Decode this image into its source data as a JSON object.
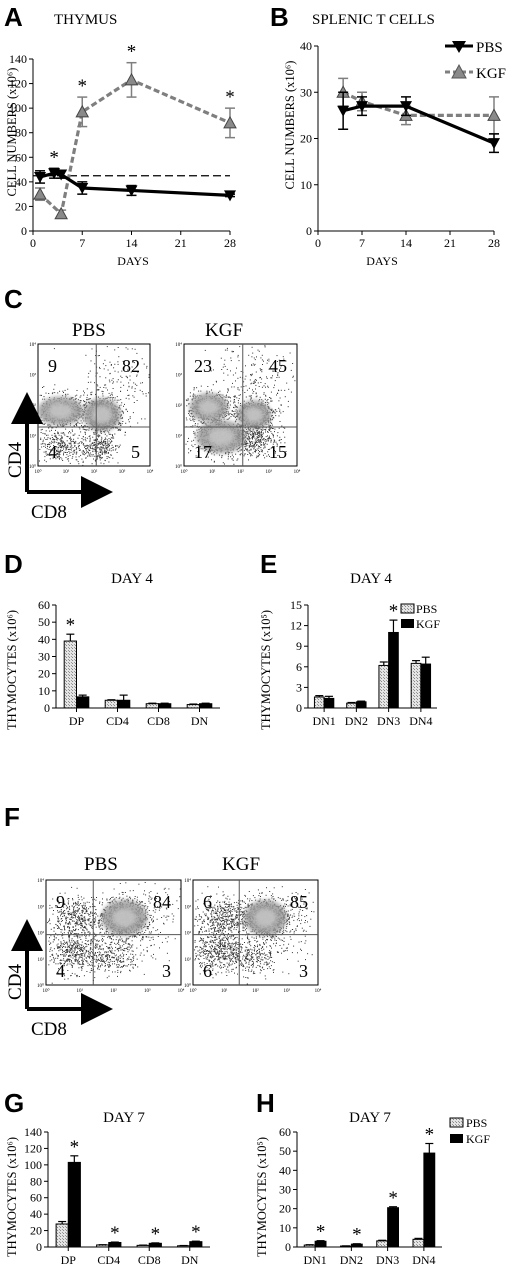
{
  "colors": {
    "pbs_line": "#000000",
    "kgf_line": "#7f7f7f",
    "kgf_marker": "#8a8a8a",
    "pbs_bar_hatch": "#c8c8c8",
    "kgf_bar": "#000000",
    "flow_background": "#ffffff"
  },
  "icons": {
    "pbs_marker": "down-triangle",
    "kgf_marker": "up-triangle",
    "significance": "asterisk"
  },
  "panels": {
    "A": {
      "letter": "A"
    },
    "B": {
      "letter": "B"
    },
    "C": {
      "letter": "C",
      "left_title": "PBS",
      "right_title": "KGF",
      "y_marker": "CD4",
      "x_marker": "CD8"
    },
    "D": {
      "letter": "D"
    },
    "E": {
      "letter": "E"
    },
    "F": {
      "letter": "F",
      "left_title": "PBS",
      "right_title": "KGF",
      "y_marker": "CD4",
      "x_marker": "CD8"
    },
    "G": {
      "letter": "G"
    },
    "H": {
      "letter": "H"
    }
  },
  "legend": {
    "pbs": "PBS",
    "kgf": "KGF"
  },
  "chart_data": [
    {
      "id": "A",
      "type": "line",
      "title": "THYMUS",
      "xlabel": "DAYS",
      "ylabel": "CELL NUMBERS (x10⁶)",
      "xlim": [
        0,
        28
      ],
      "ylim": [
        0,
        140
      ],
      "xticks": [
        0,
        7,
        14,
        21,
        28
      ],
      "yticks": [
        0,
        20,
        40,
        60,
        80,
        100,
        120,
        140
      ],
      "reference_line": {
        "style": "dashed",
        "y": 45
      },
      "series": [
        {
          "name": "PBS",
          "marker": "down-triangle",
          "line": "solid",
          "x": [
            1,
            3,
            4,
            7,
            14,
            28
          ],
          "y": [
            44,
            47,
            46,
            35,
            33,
            29
          ],
          "err": [
            5,
            4,
            3,
            5,
            4,
            1
          ]
        },
        {
          "name": "KGF",
          "marker": "up-triangle",
          "line": "dashed",
          "x": [
            1,
            4,
            7,
            14,
            28
          ],
          "y": [
            30,
            14,
            97,
            123,
            88
          ],
          "err": [
            5,
            3,
            12,
            14,
            12
          ]
        }
      ],
      "significance_x": [
        3,
        7,
        14,
        28
      ]
    },
    {
      "id": "B",
      "type": "line",
      "title": "SPLENIC T CELLS",
      "xlabel": "DAYS",
      "ylabel": "CELL NUMBERS (x10⁶)",
      "xlim": [
        0,
        28
      ],
      "ylim": [
        0,
        40
      ],
      "xticks": [
        0,
        7,
        14,
        21,
        28
      ],
      "yticks": [
        0,
        10,
        20,
        30,
        40
      ],
      "series": [
        {
          "name": "PBS",
          "marker": "down-triangle",
          "line": "solid",
          "x": [
            4,
            7,
            14,
            28
          ],
          "y": [
            26,
            27,
            27,
            19
          ],
          "err": [
            4,
            2,
            2,
            2
          ]
        },
        {
          "name": "KGF",
          "marker": "up-triangle",
          "line": "dashed",
          "x": [
            4,
            7,
            14,
            28
          ],
          "y": [
            30,
            28,
            25,
            25
          ],
          "err": [
            3,
            2,
            2,
            4
          ]
        }
      ]
    },
    {
      "id": "C",
      "type": "scatter",
      "subtype": "flow-cytometry-quadrants",
      "plots": [
        {
          "title": "PBS",
          "quadrants": {
            "upper_left": "9",
            "upper_right": "82",
            "lower_left": "4",
            "lower_right": "5"
          }
        },
        {
          "title": "KGF",
          "quadrants": {
            "upper_left": "23",
            "upper_right": "45",
            "lower_left": "17",
            "lower_right": "15"
          }
        }
      ],
      "axis_ticks": [
        "10⁰",
        "10¹",
        "10²",
        "10³",
        "10⁴"
      ]
    },
    {
      "id": "D",
      "type": "bar",
      "title": "DAY 4",
      "ylabel": "THYMOCYTES (x10⁶)",
      "ylim": [
        0,
        60
      ],
      "yticks": [
        0,
        10,
        20,
        30,
        40,
        50,
        60
      ],
      "categories": [
        "DP",
        "CD4",
        "CD8",
        "DN"
      ],
      "series": [
        {
          "name": "PBS",
          "values": [
            39,
            4.5,
            2.5,
            2
          ],
          "err": [
            4,
            0.3,
            0.3,
            0.3
          ]
        },
        {
          "name": "KGF",
          "values": [
            6.5,
            4.5,
            2.5,
            2.5
          ],
          "err": [
            1,
            3,
            0.3,
            0.3
          ]
        }
      ],
      "significance": [
        {
          "category": "DP",
          "series": "PBS"
        }
      ]
    },
    {
      "id": "E",
      "type": "bar",
      "title": "DAY 4",
      "ylabel": "THYMOCYTES (x10⁵)",
      "ylim": [
        0,
        15
      ],
      "yticks": [
        0,
        3,
        6,
        9,
        12,
        15
      ],
      "categories": [
        "DN1",
        "DN2",
        "DN3",
        "DN4"
      ],
      "series": [
        {
          "name": "PBS",
          "values": [
            1.6,
            0.7,
            6.2,
            6.5
          ],
          "err": [
            0.2,
            0.1,
            0.5,
            0.4
          ]
        },
        {
          "name": "KGF",
          "values": [
            1.4,
            0.9,
            11,
            6.4
          ],
          "err": [
            0.3,
            0.1,
            1.8,
            1
          ]
        }
      ],
      "significance": [
        {
          "category": "DN3",
          "series": "KGF"
        }
      ]
    },
    {
      "id": "F",
      "type": "scatter",
      "subtype": "flow-cytometry-quadrants",
      "plots": [
        {
          "title": "PBS",
          "quadrants": {
            "upper_left": "9",
            "upper_right": "84",
            "lower_left": "4",
            "lower_right": "3"
          }
        },
        {
          "title": "KGF",
          "quadrants": {
            "upper_left": "6",
            "upper_right": "85",
            "lower_left": "6",
            "lower_right": "3"
          }
        }
      ],
      "axis_ticks": [
        "10⁰",
        "10¹",
        "10²",
        "10³",
        "10⁴"
      ]
    },
    {
      "id": "G",
      "type": "bar",
      "title": "DAY 7",
      "ylabel": "THYMOCYTES (x10⁶)",
      "ylim": [
        0,
        140
      ],
      "yticks": [
        0,
        20,
        40,
        60,
        80,
        100,
        120,
        140
      ],
      "categories": [
        "DP",
        "CD4",
        "CD8",
        "DN"
      ],
      "series": [
        {
          "name": "PBS",
          "values": [
            28,
            2.5,
            2,
            1.5
          ],
          "err": [
            3,
            0.3,
            0.3,
            0.3
          ]
        },
        {
          "name": "KGF",
          "values": [
            103,
            5.5,
            4.5,
            6.5
          ],
          "err": [
            8,
            0.5,
            0.5,
            0.6
          ]
        }
      ],
      "significance": [
        {
          "category": "DP",
          "series": "KGF"
        },
        {
          "category": "CD4",
          "series": "KGF"
        },
        {
          "category": "CD8",
          "series": "KGF"
        },
        {
          "category": "DN",
          "series": "KGF"
        }
      ]
    },
    {
      "id": "H",
      "type": "bar",
      "title": "DAY 7",
      "ylabel": "THYMOCYTES (x10⁵)",
      "ylim": [
        0,
        60
      ],
      "yticks": [
        0,
        10,
        20,
        30,
        40,
        50,
        60
      ],
      "categories": [
        "DN1",
        "DN2",
        "DN3",
        "DN4"
      ],
      "series": [
        {
          "name": "PBS",
          "values": [
            1,
            0.5,
            3.2,
            4
          ],
          "err": [
            0.2,
            0.1,
            0.3,
            0.5
          ]
        },
        {
          "name": "KGF",
          "values": [
            3,
            1.5,
            20.5,
            49
          ],
          "err": [
            0.3,
            0.2,
            0.5,
            5
          ]
        }
      ],
      "significance": [
        {
          "category": "DN1",
          "series": "KGF"
        },
        {
          "category": "DN2",
          "series": "KGF"
        },
        {
          "category": "DN3",
          "series": "KGF"
        },
        {
          "category": "DN4",
          "series": "KGF"
        }
      ]
    }
  ]
}
